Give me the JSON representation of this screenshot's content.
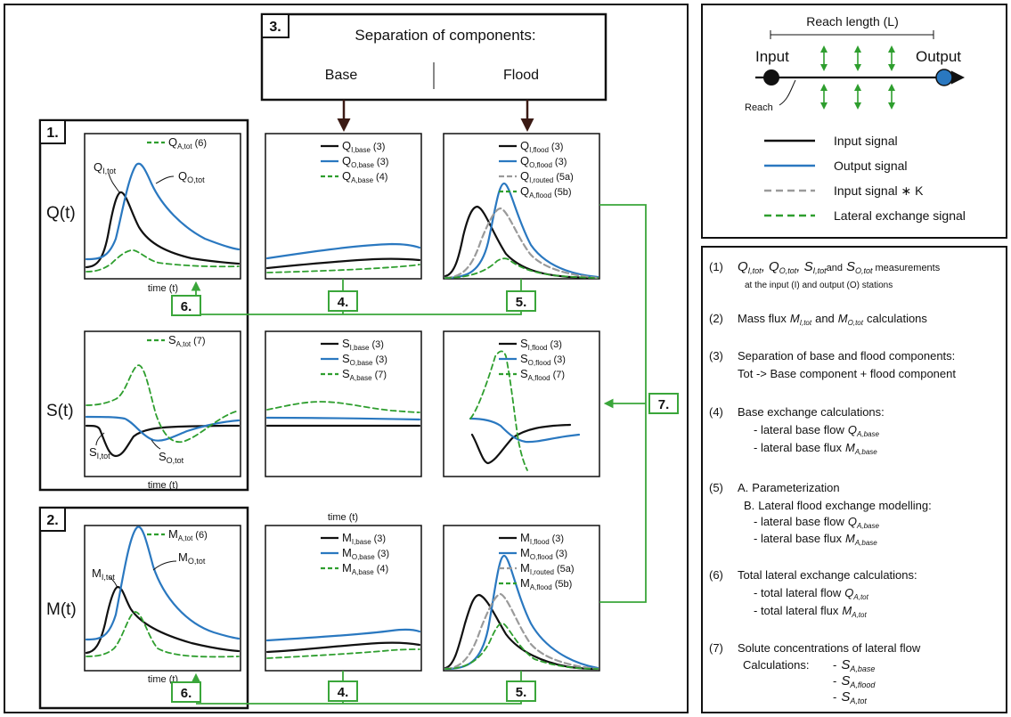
{
  "header": {
    "number": "3.",
    "title": "Separation of components:",
    "base": "Base",
    "flood": "Flood"
  },
  "section_labels": {
    "s1": "1.",
    "s2": "2."
  },
  "row_labels": {
    "q": "Q(t)",
    "s": "S(t)",
    "m": "M(t)"
  },
  "axis": {
    "time": "time (t)"
  },
  "connectors": {
    "n4": "4.",
    "n5": "5.",
    "n6": "6.",
    "n7": "7."
  },
  "panels": {
    "q_tot": {
      "legend": [
        {
          "main": "Q",
          "sub": "A,tot",
          "ref": "(6)"
        }
      ],
      "annot": [
        {
          "main": "Q",
          "sub": "I,tot"
        },
        {
          "main": "Q",
          "sub": "O,tot"
        }
      ]
    },
    "q_base": {
      "legend": [
        {
          "main": "Q",
          "sub": "I,base",
          "ref": "(3)"
        },
        {
          "main": "Q",
          "sub": "O,base",
          "ref": "(3)"
        },
        {
          "main": "Q",
          "sub": "A,base",
          "ref": "(4)"
        }
      ]
    },
    "q_flood": {
      "legend": [
        {
          "main": "Q",
          "sub": "I,flood",
          "ref": "(3)"
        },
        {
          "main": "Q",
          "sub": "O,flood",
          "ref": "(3)"
        },
        {
          "main": "Q",
          "sub": "I,routed",
          "ref": "(5a)"
        },
        {
          "main": "Q",
          "sub": "A,flood",
          "ref": "(5b)"
        }
      ]
    },
    "s_tot": {
      "legend": [
        {
          "main": "S",
          "sub": "A,tot",
          "ref": "(7)"
        }
      ],
      "annot": [
        {
          "main": "S",
          "sub": "I,tot"
        },
        {
          "main": "S",
          "sub": "O,tot"
        }
      ]
    },
    "s_base": {
      "legend": [
        {
          "main": "S",
          "sub": "I,base",
          "ref": "(3)"
        },
        {
          "main": "S",
          "sub": "O,base",
          "ref": "(3)"
        },
        {
          "main": "S",
          "sub": "A,base",
          "ref": "(7)"
        }
      ]
    },
    "s_flood": {
      "legend": [
        {
          "main": "S",
          "sub": "I,flood",
          "ref": "(3)"
        },
        {
          "main": "S",
          "sub": "O,flood",
          "ref": "(3)"
        },
        {
          "main": "S",
          "sub": "A,flood",
          "ref": "(7)"
        }
      ]
    },
    "m_tot": {
      "legend": [
        {
          "main": "M",
          "sub": "A,tot",
          "ref": "(6)"
        }
      ],
      "annot": [
        {
          "main": "M",
          "sub": "I,tot"
        },
        {
          "main": "M",
          "sub": "O,tot"
        }
      ]
    },
    "m_base": {
      "legend": [
        {
          "main": "M",
          "sub": "I,base",
          "ref": "(3)"
        },
        {
          "main": "M",
          "sub": "O,base",
          "ref": "(3)"
        },
        {
          "main": "M",
          "sub": "A,base",
          "ref": "(4)"
        }
      ]
    },
    "m_flood": {
      "legend": [
        {
          "main": "M",
          "sub": "I,flood",
          "ref": "(3)"
        },
        {
          "main": "M",
          "sub": "O,flood",
          "ref": "(3)"
        },
        {
          "main": "M",
          "sub": "I,routed",
          "ref": "(5a)"
        },
        {
          "main": "M",
          "sub": "A,flood",
          "ref": "(5b)"
        }
      ]
    }
  },
  "schematic": {
    "reach_length": "Reach length (L)",
    "input": "Input",
    "output": "Output",
    "reach": "Reach"
  },
  "legend": {
    "input_signal": "Input signal",
    "output_signal": "Output signal",
    "input_k": "Input signal ∗ K",
    "lateral": "Lateral exchange signal"
  },
  "colors": {
    "input": "#111111",
    "output": "#2a78c0",
    "routed": "#9a9a9a",
    "lateral": "#2e9e2e",
    "connector": "#3aa63a",
    "arrow": "#3a1a14"
  },
  "steps": {
    "s1_num": "(1)",
    "s1_vars": [
      {
        "main": "Q",
        "sub": "I,tot"
      },
      {
        "main": "Q",
        "sub": "O,tot"
      },
      {
        "main": "S",
        "sub": "I,tot"
      },
      {
        "main": "S",
        "sub": "O,tot"
      }
    ],
    "s1_and": "and",
    "s1_measure": "measurements",
    "s1_line2": "at the input (I) and output (O) stations",
    "s2_num": "(2)",
    "s2_a": "Mass flux",
    "s2_v1": {
      "main": "M",
      "sub": "I,tot"
    },
    "s2_and": "and",
    "s2_v2": {
      "main": "M",
      "sub": "O,tot"
    },
    "s2_b": "calculations",
    "s3_num": "(3)",
    "s3_line1": "Separation of base and flood components:",
    "s3_line2": "Tot -> Base component + flood component",
    "s4_num": "(4)",
    "s4_line1": "Base exchange calculations:",
    "s4_item1": "- lateral base flow",
    "s4_v1": {
      "main": "Q",
      "sub": "A,base"
    },
    "s4_item2": "- lateral base flux",
    "s4_v2": {
      "main": "M",
      "sub": "A,base"
    },
    "s5_num": "(5)",
    "s5_a": "A.",
    "s5_a_text": "Parameterization",
    "s5_b": "B.",
    "s5_b_text": "Lateral flood exchange modelling:",
    "s5_item1": "- lateral base flow",
    "s5_v1": {
      "main": "Q",
      "sub": "A,base"
    },
    "s5_item2": "- lateral base flux",
    "s5_v2": {
      "main": "M",
      "sub": "A,base"
    },
    "s6_num": "(6)",
    "s6_line1": "Total lateral exchange calculations:",
    "s6_item1": "- total lateral flow",
    "s6_v1": {
      "main": "Q",
      "sub": "A,tot"
    },
    "s6_item2": "- total lateral flux",
    "s6_v2": {
      "main": "M",
      "sub": "A,tot"
    },
    "s7_num": "(7)",
    "s7_line1": "Solute concentrations of lateral flow",
    "s7_line2": "Calculations:",
    "s7_dash": "-",
    "s7_v1": {
      "main": "S",
      "sub": "A,base"
    },
    "s7_v2": {
      "main": "S",
      "sub": "A,flood"
    },
    "s7_v3": {
      "main": "S",
      "sub": "A,tot"
    }
  }
}
